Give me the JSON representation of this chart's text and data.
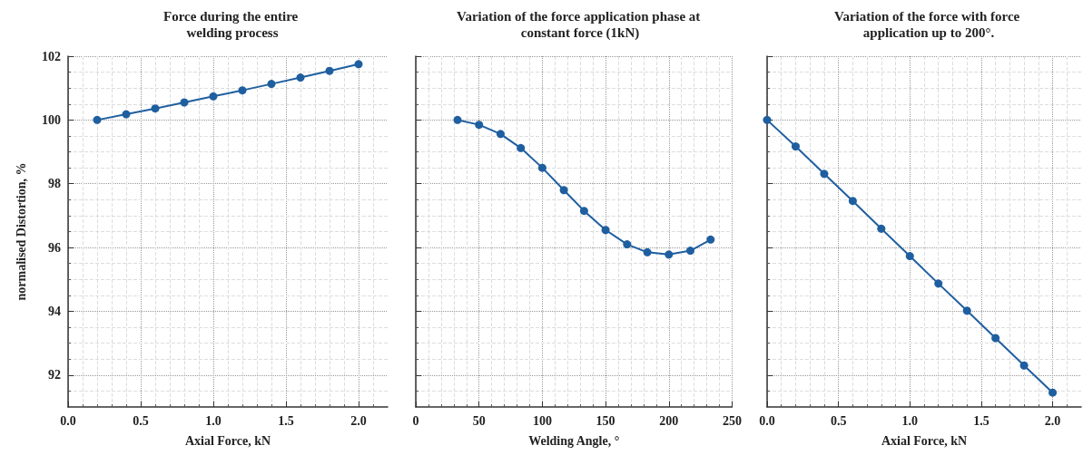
{
  "chart_data": [
    {
      "type": "line",
      "title": "Force during the entire welding process",
      "xlabel": "Axial Force, kN",
      "ylabel": "normalised Distortion, %",
      "x": [
        0.2,
        0.4,
        0.6,
        0.8,
        1.0,
        1.2,
        1.4,
        1.6,
        1.8,
        2.0
      ],
      "series": [
        {
          "color": "#1f5fa0",
          "values": [
            100,
            100.18,
            100.36,
            100.55,
            100.74,
            100.93,
            101.13,
            101.33,
            101.54,
            101.75
          ]
        }
      ],
      "xlim": [
        0,
        2.2
      ],
      "xticks": [
        {
          "value": 0,
          "label": "0.0"
        },
        0.5,
        {
          "value": 1,
          "label": "1.0"
        },
        1.5,
        {
          "value": 2,
          "label": "2.0"
        }
      ],
      "ylim": [
        91,
        102
      ],
      "yticks": [
        92,
        94,
        96,
        98,
        100,
        102
      ],
      "grid": true,
      "marker": "circle"
    },
    {
      "type": "line",
      "title": "Variation of the force application phase at constant force (1kN)",
      "xlabel": "Welding Angle, °",
      "x": [
        33,
        50,
        67,
        83,
        100,
        117,
        133,
        150,
        167,
        183,
        200,
        217,
        233
      ],
      "series": [
        {
          "color": "#1f5fa0",
          "values": [
            100,
            99.85,
            99.56,
            99.12,
            98.5,
            97.8,
            97.15,
            96.55,
            96.1,
            95.85,
            95.78,
            95.9,
            96.25
          ]
        }
      ],
      "xlim": [
        0,
        250
      ],
      "xticks": [
        0,
        50,
        100,
        150,
        200,
        250
      ],
      "ylim": [
        91,
        102
      ],
      "yticks": [
        92,
        94,
        96,
        98,
        100,
        102
      ],
      "tick_labels": "x",
      "grid": true,
      "marker": "circle"
    },
    {
      "type": "line",
      "title": "Variation of the force with force application up to 200°.",
      "xlabel": "Axial Force, kN",
      "x": [
        0,
        0.2,
        0.4,
        0.6,
        0.8,
        1.0,
        1.2,
        1.4,
        1.6,
        1.8,
        2.0
      ],
      "series": [
        {
          "color": "#1f5fa0",
          "values": [
            100,
            99.17,
            98.31,
            97.46,
            96.59,
            95.73,
            94.87,
            94.02,
            93.16,
            92.3,
            91.45
          ]
        }
      ],
      "xlim": [
        0,
        2.2
      ],
      "xticks": [
        {
          "value": 0,
          "label": "0.0"
        },
        0.5,
        {
          "value": 1,
          "label": "1.0"
        },
        1.5,
        {
          "value": 2,
          "label": "2.0"
        }
      ],
      "ylim": [
        91,
        102
      ],
      "yticks": [
        92,
        94,
        96,
        98,
        100,
        102
      ],
      "tick_labels": "x",
      "grid": true,
      "marker": "circle"
    }
  ]
}
